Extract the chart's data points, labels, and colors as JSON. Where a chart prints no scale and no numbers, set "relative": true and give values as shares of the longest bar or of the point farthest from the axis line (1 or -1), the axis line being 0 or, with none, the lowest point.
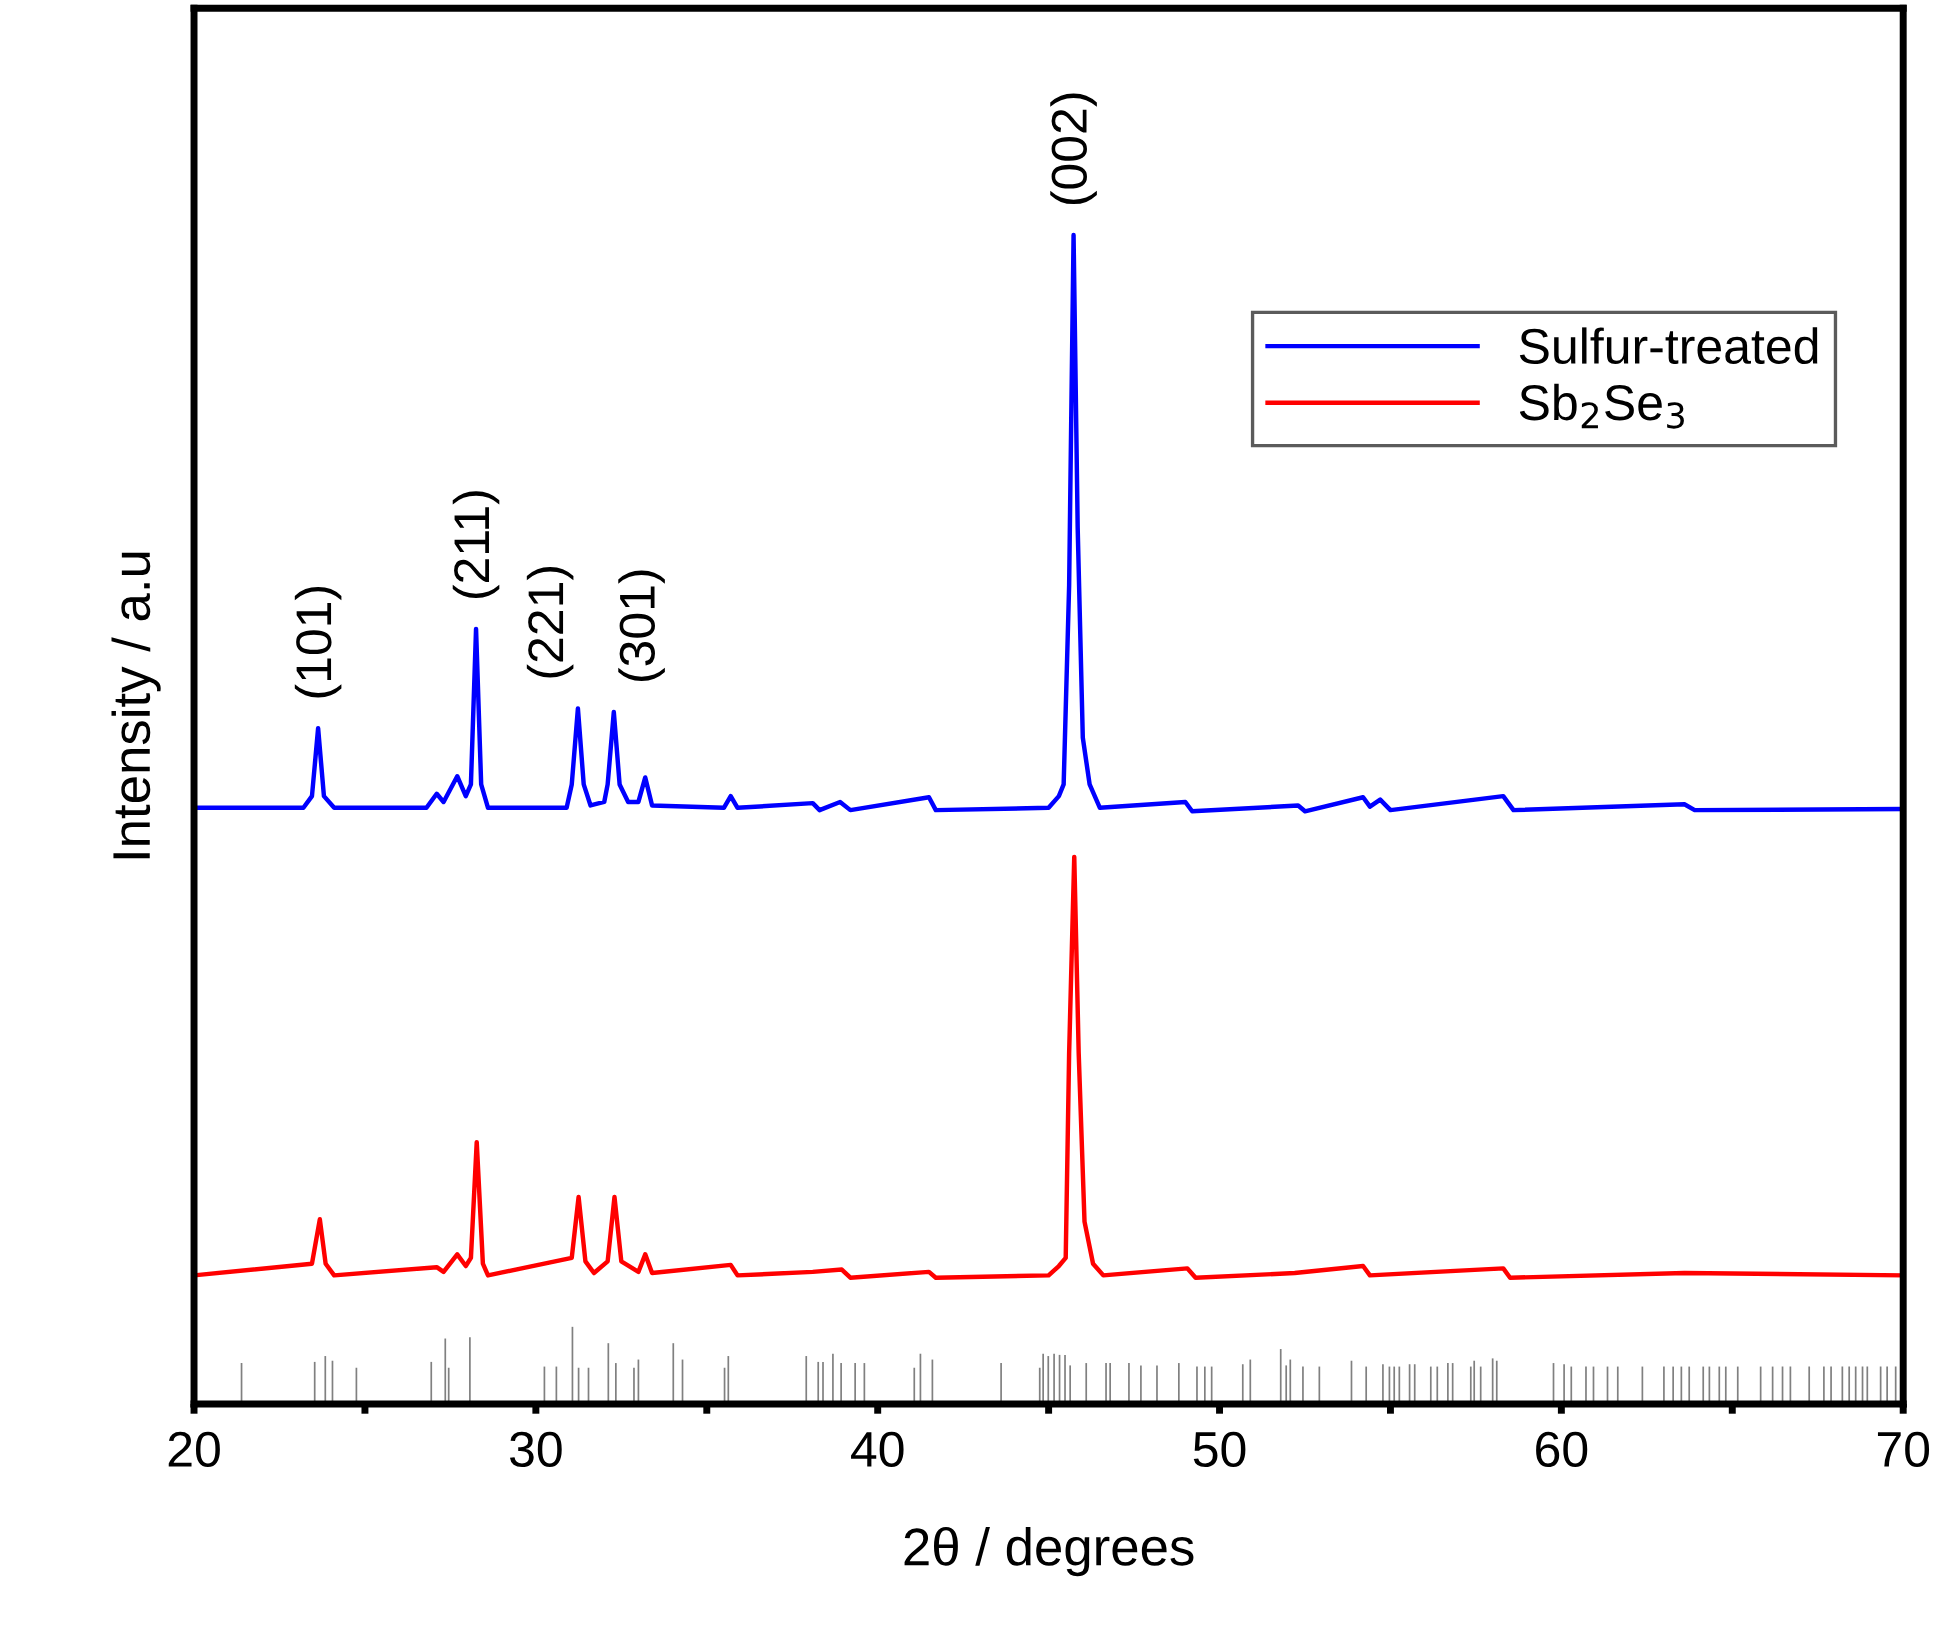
{
  "chart_data": {
    "type": "line",
    "relative": true,
    "xlabel": "2θ / degrees",
    "ylabel": "Intensity / a.u",
    "xlim": [
      20,
      70
    ],
    "xticks": [
      20,
      {
        "value": 25,
        "label": null
      },
      30,
      {
        "value": 35,
        "label": null
      },
      40,
      {
        "value": 45,
        "label": null
      },
      50,
      {
        "value": 55,
        "label": null
      },
      60,
      {
        "value": 65,
        "label": null
      },
      70
    ],
    "tick_labels": "x",
    "grid": false,
    "legend": "top right",
    "marker": "none",
    "line_style": "solid",
    "series": [
      {
        "name": "Sulfur-treated",
        "color": "#0000ff",
        "x": [
          20,
          23.2,
          23.45,
          23.63,
          23.8,
          24.1,
          26.8,
          27.1,
          27.3,
          27.7,
          27.95,
          28.1,
          28.25,
          28.4,
          28.6,
          30.9,
          31.05,
          31.23,
          31.4,
          31.6,
          32.0,
          32.1,
          32.28,
          32.45,
          32.7,
          33.0,
          33.2,
          33.4,
          35.5,
          35.7,
          35.9,
          38.1,
          38.3,
          38.9,
          39.2,
          41.5,
          41.7,
          45.0,
          45.3,
          45.44,
          45.6,
          45.73,
          45.85,
          46.0,
          46.2,
          46.5,
          49.0,
          49.2,
          52.3,
          52.5,
          54.2,
          54.4,
          54.7,
          55.0,
          58.3,
          58.6,
          63.6,
          63.9,
          70
        ],
        "values": [
          0.51,
          0.51,
          0.52,
          0.578,
          0.52,
          0.51,
          0.51,
          0.522,
          0.515,
          0.537,
          0.52,
          0.53,
          0.663,
          0.53,
          0.51,
          0.51,
          0.53,
          0.595,
          0.53,
          0.512,
          0.515,
          0.53,
          0.592,
          0.53,
          0.515,
          0.515,
          0.536,
          0.512,
          0.51,
          0.52,
          0.51,
          0.514,
          0.508,
          0.515,
          0.508,
          0.519,
          0.508,
          0.51,
          0.52,
          0.53,
          0.7,
          1.0,
          0.75,
          0.57,
          0.53,
          0.51,
          0.515,
          0.507,
          0.512,
          0.507,
          0.519,
          0.511,
          0.517,
          0.508,
          0.52,
          0.508,
          0.513,
          0.508,
          0.509
        ]
      },
      {
        "name": "Sb$_{2}$Se$_{3}$",
        "color": "#ff0000",
        "x": [
          20,
          23.45,
          23.68,
          23.85,
          24.1,
          27.1,
          27.3,
          27.7,
          27.95,
          28.1,
          28.27,
          28.45,
          28.6,
          31.05,
          31.25,
          31.45,
          31.7,
          32.1,
          32.3,
          32.5,
          33.0,
          33.2,
          33.4,
          35.7,
          35.9,
          38.1,
          38.95,
          39.2,
          41.5,
          41.7,
          45.0,
          45.3,
          45.5,
          45.6,
          45.75,
          45.88,
          46.05,
          46.3,
          46.6,
          49.06,
          49.3,
          52.2,
          54.2,
          54.4,
          58.3,
          58.5,
          63.6,
          70
        ],
        "values": [
          0.11,
          0.12,
          0.158,
          0.12,
          0.11,
          0.117,
          0.113,
          0.128,
          0.118,
          0.125,
          0.224,
          0.12,
          0.11,
          0.125,
          0.177,
          0.122,
          0.112,
          0.122,
          0.177,
          0.122,
          0.113,
          0.128,
          0.112,
          0.119,
          0.11,
          0.113,
          0.115,
          0.108,
          0.113,
          0.108,
          0.11,
          0.118,
          0.125,
          0.3,
          0.468,
          0.3,
          0.156,
          0.12,
          0.11,
          0.116,
          0.108,
          0.112,
          0.118,
          0.11,
          0.116,
          0.108,
          0.112,
          0.11
        ]
      },
      {
        "type": "bar",
        "color": "#808080",
        "x": [
          21.39,
          23.53,
          23.84,
          24.05,
          24.75,
          26.94,
          27.35,
          27.45,
          28.07,
          30.25,
          30.6,
          31.07,
          31.25,
          31.54,
          32.12,
          32.34,
          32.87,
          33.0,
          34.02,
          34.29,
          35.52,
          35.63,
          37.91,
          38.26,
          38.4,
          38.69,
          38.93,
          39.34,
          39.61,
          41.07,
          41.25,
          41.6,
          43.61,
          44.74,
          44.84,
          44.99,
          45.16,
          45.32,
          45.48,
          45.63,
          46.1,
          46.68,
          46.8,
          47.35,
          47.7,
          48.17,
          48.81,
          49.34,
          49.57,
          49.77,
          50.68,
          50.9,
          51.79,
          51.95,
          52.07,
          52.44,
          52.92,
          53.86,
          54.29,
          54.78,
          54.97,
          55.11,
          55.26,
          55.56,
          55.71,
          56.18,
          56.37,
          56.68,
          56.82,
          57.35,
          57.45,
          57.64,
          57.99,
          58.11,
          59.77,
          60.08,
          60.29,
          60.72,
          60.94,
          61.35,
          61.65,
          62.37,
          63.0,
          63.27,
          63.51,
          63.74,
          64.15,
          64.33,
          64.62,
          64.81,
          65.16,
          65.83,
          66.18,
          66.47,
          66.7,
          67.25,
          67.68,
          67.89,
          68.22,
          68.42,
          68.61,
          68.81,
          68.95,
          69.34,
          69.53,
          69.78
        ],
        "values": [
          0.035,
          0.036,
          0.041,
          0.037,
          0.031,
          0.036,
          0.056,
          0.031,
          0.057,
          0.032,
          0.032,
          0.066,
          0.031,
          0.031,
          0.052,
          0.035,
          0.031,
          0.038,
          0.052,
          0.038,
          0.031,
          0.041,
          0.041,
          0.036,
          0.036,
          0.043,
          0.035,
          0.035,
          0.035,
          0.031,
          0.043,
          0.038,
          0.035,
          0.031,
          0.043,
          0.041,
          0.043,
          0.042,
          0.042,
          0.033,
          0.035,
          0.035,
          0.035,
          0.035,
          0.033,
          0.033,
          0.035,
          0.032,
          0.032,
          0.032,
          0.034,
          0.038,
          0.047,
          0.033,
          0.038,
          0.032,
          0.032,
          0.037,
          0.032,
          0.034,
          0.032,
          0.032,
          0.032,
          0.034,
          0.034,
          0.032,
          0.032,
          0.035,
          0.035,
          0.032,
          0.037,
          0.032,
          0.039,
          0.037,
          0.035,
          0.034,
          0.032,
          0.032,
          0.032,
          0.032,
          0.032,
          0.032,
          0.032,
          0.032,
          0.032,
          0.032,
          0.032,
          0.032,
          0.032,
          0.032,
          0.032,
          0.032,
          0.032,
          0.032,
          0.032,
          0.032,
          0.032,
          0.032,
          0.032,
          0.032,
          0.032,
          0.032,
          0.032,
          0.032,
          0.032,
          0.032
        ]
      }
    ],
    "annotations": [
      {
        "text": "(101)",
        "x": 23.63,
        "y": 0.578
      },
      {
        "text": "(211)",
        "x": 28.25,
        "y": 0.663
      },
      {
        "text": "(221)",
        "x": 31.23,
        "y": 0.595
      },
      {
        "text": "(301)",
        "x": 32.28,
        "y": 0.592
      },
      {
        "text": "(002)",
        "x": 45.73,
        "y": 1.0
      }
    ]
  }
}
